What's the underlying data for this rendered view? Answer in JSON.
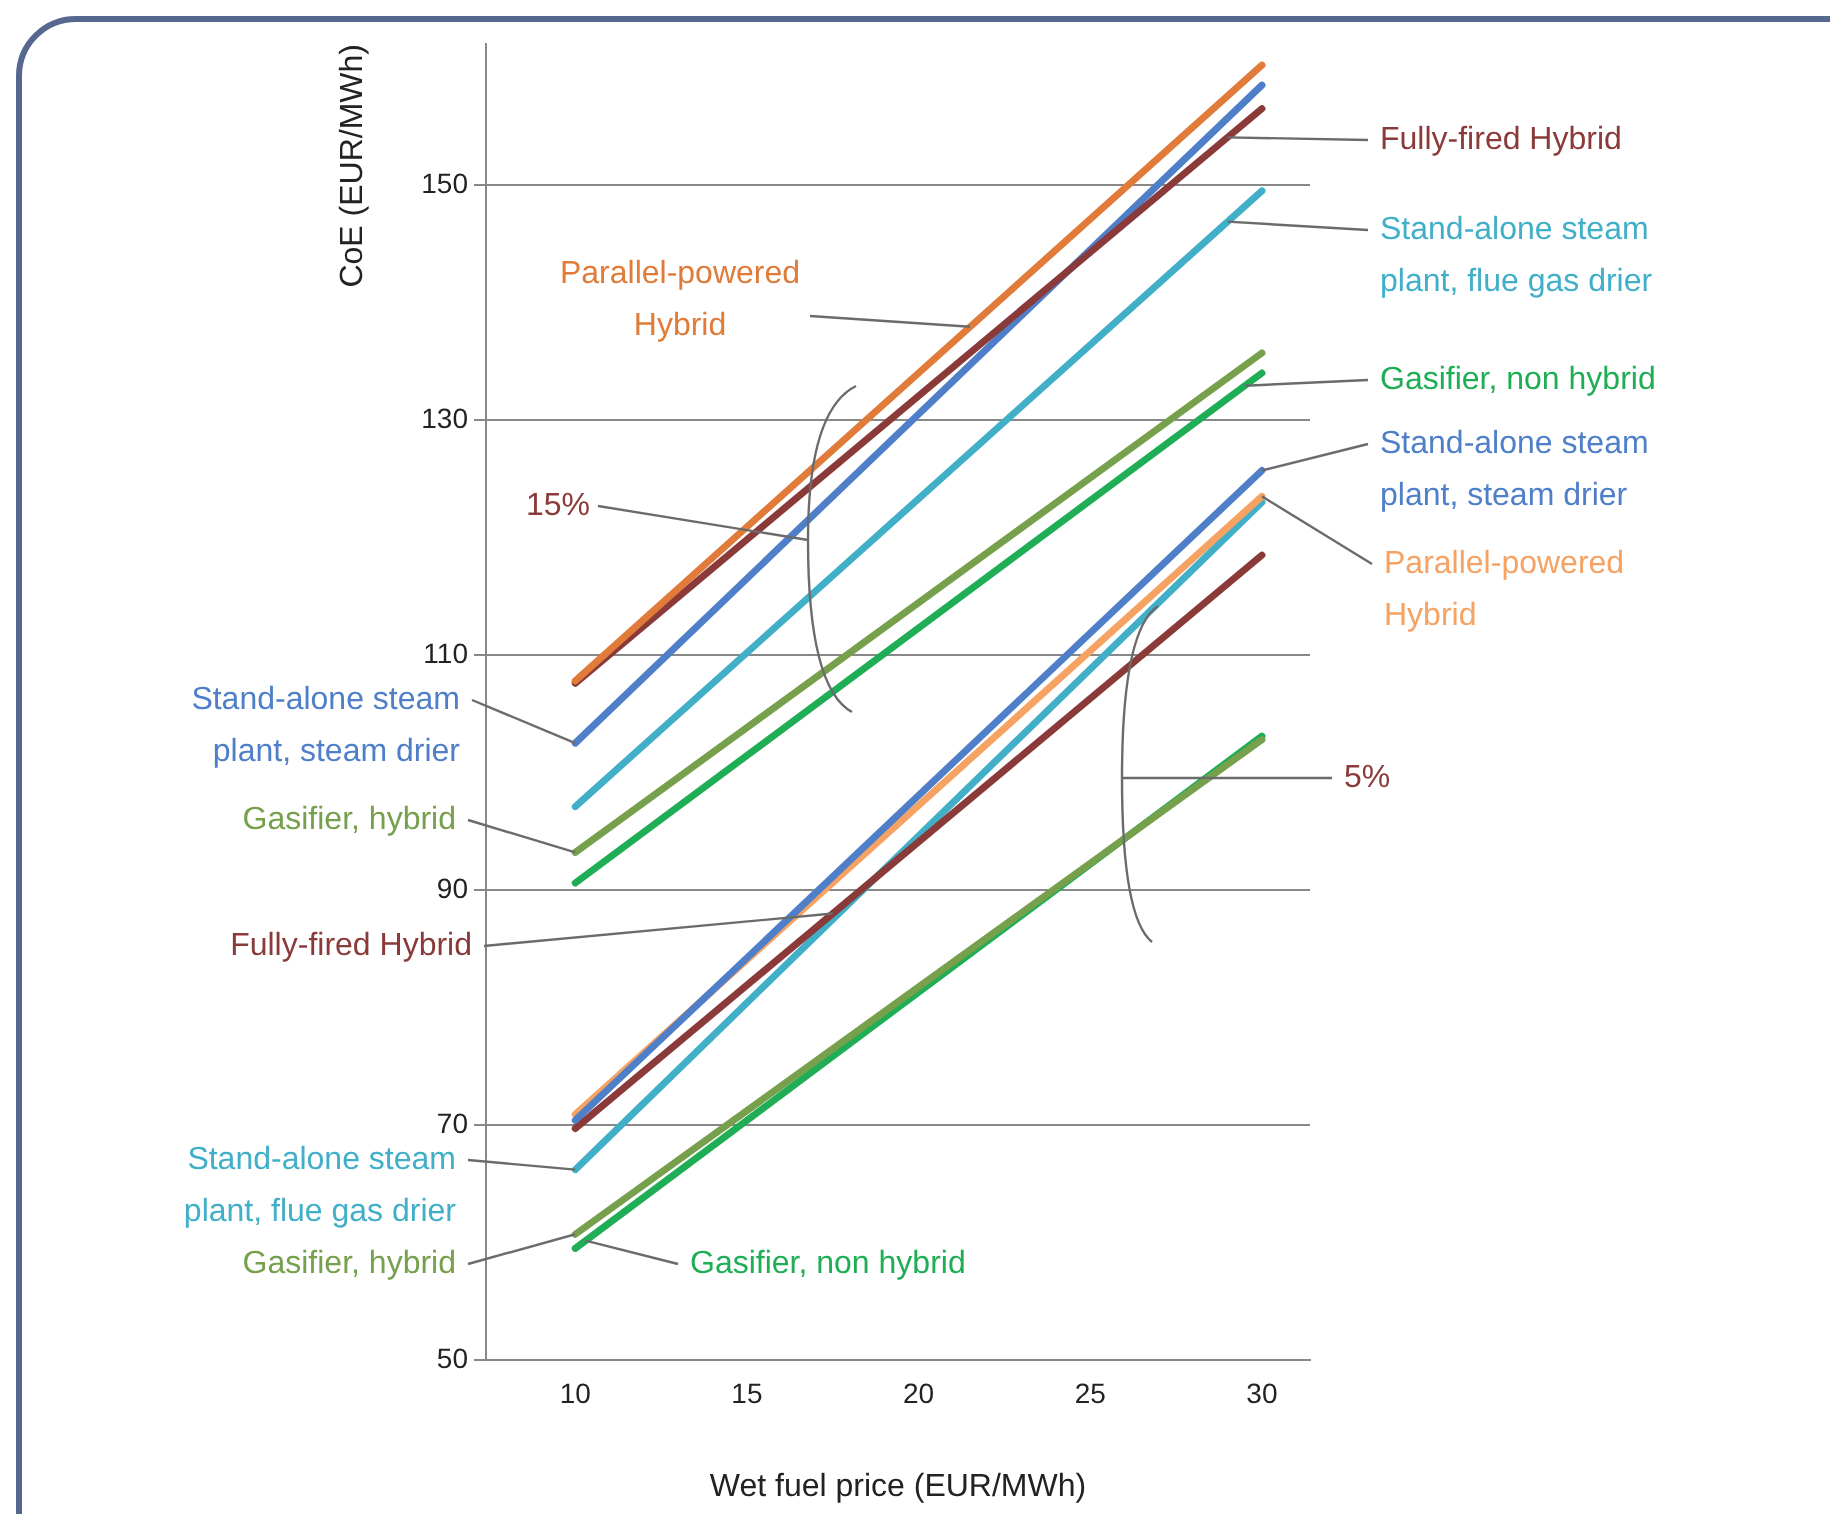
{
  "chart_data": {
    "type": "line",
    "xlabel": "Wet fuel price (EUR/MWh)",
    "ylabel": "CoE (EUR/MWh)",
    "xlim": [
      7.4,
      31.4
    ],
    "xticks": [
      10,
      15,
      20,
      25,
      30
    ],
    "ylim": [
      50,
      162
    ],
    "yticks": [
      50,
      70,
      90,
      110,
      130,
      150
    ],
    "grid": "y",
    "legend": false,
    "marker": "none",
    "line_style": "solid",
    "annotations": [
      "15%",
      "5%"
    ],
    "x": [
      10,
      30
    ],
    "series": [
      {
        "name": "Parallel-powered Hybrid",
        "color": "#e07b39",
        "values": [
          107.8,
          160.2
        ]
      },
      {
        "name": "Fully-fired Hybrid",
        "color": "#8b3a3a",
        "values": [
          107.6,
          156.5
        ]
      },
      {
        "name": "Stand-alone steam plant, steam drier",
        "color": "#4f7fc9",
        "values": [
          102.5,
          158.5
        ]
      },
      {
        "name": "Stand-alone steam plant, flue gas drier",
        "color": "#42afc9",
        "values": [
          97.1,
          149.5
        ]
      },
      {
        "name": "Gasifier, hybrid",
        "color": "#77a04d",
        "values": [
          93.2,
          135.7
        ]
      },
      {
        "name": "Gasifier, non hybrid",
        "color": "#1fae55",
        "values": [
          90.6,
          134.0
        ]
      },
      {
        "name": "Stand-alone steam plant, steam drier",
        "color": "#4f7fc9",
        "values": [
          70.4,
          125.7
        ]
      },
      {
        "name": "Parallel-powered Hybrid",
        "color": "#f5a263",
        "values": [
          70.9,
          123.5
        ]
      },
      {
        "name": "Fully-fired Hybrid",
        "color": "#8b3a3a",
        "values": [
          69.7,
          118.5
        ]
      },
      {
        "name": "Stand-alone steam plant, flue gas drier",
        "color": "#42afc9",
        "values": [
          66.2,
          123.0
        ]
      },
      {
        "name": "Gasifier, hybrid",
        "color": "#77a04d",
        "values": [
          60.7,
          102.8
        ]
      },
      {
        "name": "Gasifier, non hybrid",
        "color": "#1fae55",
        "values": [
          59.5,
          103.1
        ]
      }
    ]
  }
}
